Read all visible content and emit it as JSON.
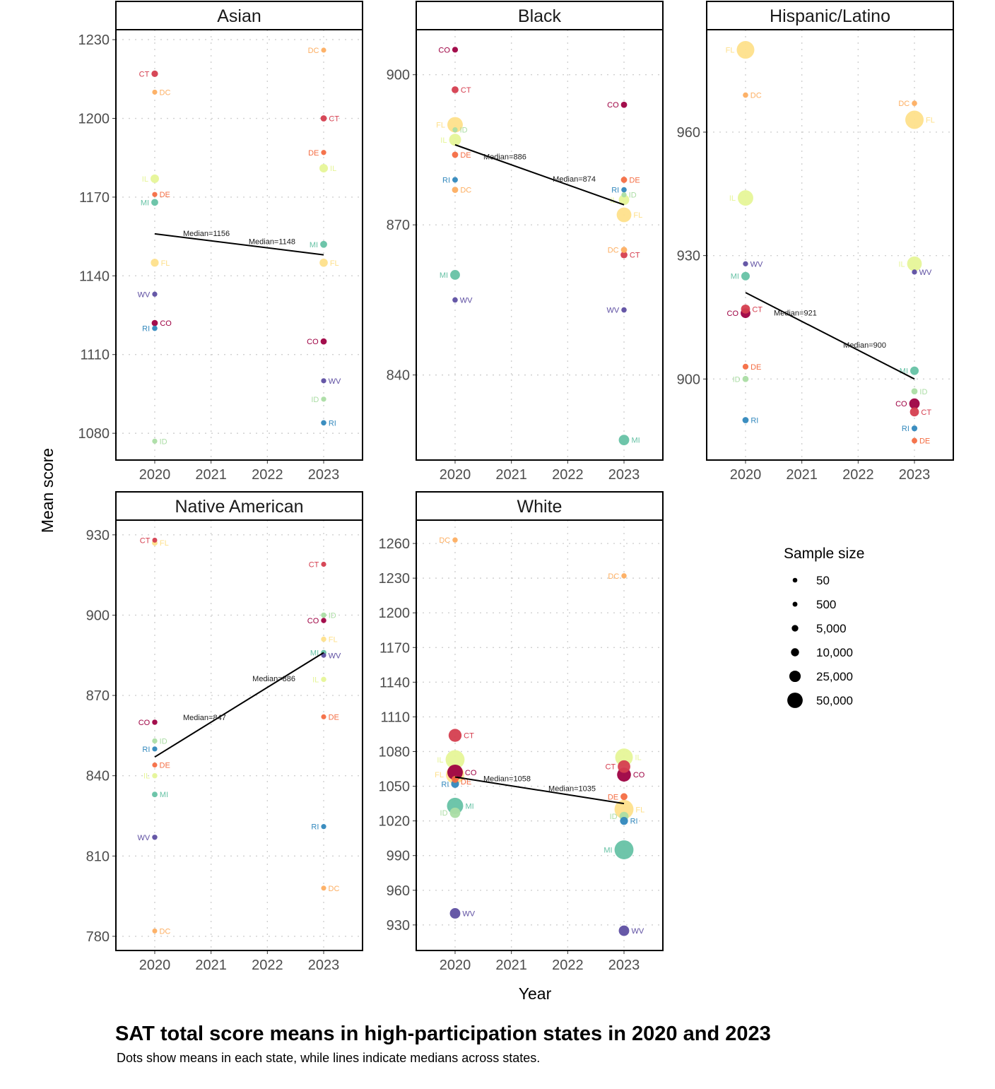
{
  "title": "SAT total score means in high-participation states in 2020 and 2023",
  "subtitle": "Dots show means in each state, while lines indicate medians across states.",
  "state_colors": {
    "CO": "#9E0142",
    "CT": "#D53E4F",
    "DE": "#F46D43",
    "DC": "#FDAE61",
    "FL": "#FEE08B",
    "IL": "#E6F598",
    "ID": "#ABDDA4",
    "MI": "#66C2A5",
    "RI": "#3288BD",
    "WV": "#5E4FA2"
  },
  "chart_data": {
    "type": "scatter",
    "xlabel": "Year",
    "ylabel": "Mean score",
    "x_ticks": [
      2020,
      2021,
      2022,
      2023
    ],
    "xlim": [
      2019.31,
      2023.69
    ],
    "grid": true,
    "legend": {
      "title": "Sample size",
      "placement": "right",
      "values": [
        50,
        500,
        5000,
        10000,
        25000,
        50000
      ],
      "labels": [
        "50",
        "500",
        "5,000",
        "10,000",
        "25,000",
        "50,000"
      ]
    },
    "panels": [
      {
        "name": "Asian",
        "ylim": [
          1069.8,
          1233.8
        ],
        "y_ticks": [
          1080,
          1110,
          1140,
          1170,
          1200,
          1230
        ],
        "medians": [
          {
            "year": 2020,
            "value": 1156,
            "label": "Median=1156"
          },
          {
            "year": 2023,
            "value": 1148,
            "label": "Median=1148"
          }
        ],
        "points": [
          {
            "state": "CT",
            "year": 2020,
            "score": 1217,
            "n": 4000
          },
          {
            "state": "DC",
            "year": 2020,
            "score": 1210,
            "n": 300
          },
          {
            "state": "IL",
            "year": 2020,
            "score": 1177,
            "n": 10000
          },
          {
            "state": "DE",
            "year": 2020,
            "score": 1171,
            "n": 500
          },
          {
            "state": "MI",
            "year": 2020,
            "score": 1168,
            "n": 5000
          },
          {
            "state": "FL",
            "year": 2020,
            "score": 1145,
            "n": 8000
          },
          {
            "state": "WV",
            "year": 2020,
            "score": 1133,
            "n": 500
          },
          {
            "state": "CO",
            "year": 2020,
            "score": 1122,
            "n": 3000
          },
          {
            "state": "RI",
            "year": 2020,
            "score": 1120,
            "n": 1000
          },
          {
            "state": "ID",
            "year": 2020,
            "score": 1077,
            "n": 500
          },
          {
            "state": "DC",
            "year": 2023,
            "score": 1226,
            "n": 300
          },
          {
            "state": "CT",
            "year": 2023,
            "score": 1200,
            "n": 3000
          },
          {
            "state": "DE",
            "year": 2023,
            "score": 1187,
            "n": 600
          },
          {
            "state": "IL",
            "year": 2023,
            "score": 1181,
            "n": 10000
          },
          {
            "state": "MI",
            "year": 2023,
            "score": 1152,
            "n": 5000
          },
          {
            "state": "FL",
            "year": 2023,
            "score": 1145,
            "n": 9000
          },
          {
            "state": "CO",
            "year": 2023,
            "score": 1115,
            "n": 3000
          },
          {
            "state": "WV",
            "year": 2023,
            "score": 1100,
            "n": 500
          },
          {
            "state": "ID",
            "year": 2023,
            "score": 1093,
            "n": 500
          },
          {
            "state": "RI",
            "year": 2023,
            "score": 1084,
            "n": 1000
          }
        ]
      },
      {
        "name": "Black",
        "ylim": [
          823.0,
          909.0
        ],
        "y_ticks": [
          840,
          870,
          900
        ],
        "medians": [
          {
            "year": 2020,
            "value": 886,
            "label": "Median=886"
          },
          {
            "year": 2023,
            "value": 874,
            "label": "Median=874"
          }
        ],
        "points": [
          {
            "state": "CO",
            "year": 2020,
            "score": 905,
            "n": 2000
          },
          {
            "state": "CT",
            "year": 2020,
            "score": 897,
            "n": 5000
          },
          {
            "state": "FL",
            "year": 2020,
            "score": 890,
            "n": 45000
          },
          {
            "state": "ID",
            "year": 2020,
            "score": 889,
            "n": 500
          },
          {
            "state": "IL",
            "year": 2020,
            "score": 887,
            "n": 25000
          },
          {
            "state": "DE",
            "year": 2020,
            "score": 884,
            "n": 3000
          },
          {
            "state": "RI",
            "year": 2020,
            "score": 879,
            "n": 1500
          },
          {
            "state": "DC",
            "year": 2020,
            "score": 877,
            "n": 3000
          },
          {
            "state": "MI",
            "year": 2020,
            "score": 860,
            "n": 15000
          },
          {
            "state": "WV",
            "year": 2020,
            "score": 855,
            "n": 1000
          },
          {
            "state": "CO",
            "year": 2023,
            "score": 894,
            "n": 3000
          },
          {
            "state": "DE",
            "year": 2023,
            "score": 879,
            "n": 3000
          },
          {
            "state": "RI",
            "year": 2023,
            "score": 877,
            "n": 1000
          },
          {
            "state": "ID",
            "year": 2023,
            "score": 876,
            "n": 500
          },
          {
            "state": "IL",
            "year": 2023,
            "score": 875,
            "n": 18000
          },
          {
            "state": "FL",
            "year": 2023,
            "score": 872,
            "n": 40000
          },
          {
            "state": "DC",
            "year": 2023,
            "score": 865,
            "n": 3000
          },
          {
            "state": "CT",
            "year": 2023,
            "score": 864,
            "n": 5000
          },
          {
            "state": "WV",
            "year": 2023,
            "score": 853,
            "n": 1000
          },
          {
            "state": "MI",
            "year": 2023,
            "score": 827,
            "n": 18000
          }
        ]
      },
      {
        "name": "Hispanic/Latino",
        "ylim": [
          880.3,
          984.9
        ],
        "y_ticks": [
          900,
          930,
          960
        ],
        "medians": [
          {
            "year": 2020,
            "value": 921,
            "label": "Median=921"
          },
          {
            "year": 2023,
            "value": 900,
            "label": "Median=900"
          }
        ],
        "points": [
          {
            "state": "FL",
            "year": 2020,
            "score": 980,
            "n": 60000
          },
          {
            "state": "DC",
            "year": 2020,
            "score": 969,
            "n": 1000
          },
          {
            "state": "IL",
            "year": 2020,
            "score": 944,
            "n": 45000
          },
          {
            "state": "WV",
            "year": 2020,
            "score": 928,
            "n": 600
          },
          {
            "state": "MI",
            "year": 2020,
            "score": 925,
            "n": 10000
          },
          {
            "state": "CO",
            "year": 2020,
            "score": 916,
            "n": 15000
          },
          {
            "state": "CT",
            "year": 2020,
            "score": 917,
            "n": 12000
          },
          {
            "state": "DE",
            "year": 2020,
            "score": 903,
            "n": 2000
          },
          {
            "state": "ID",
            "year": 2020,
            "score": 900,
            "n": 3000
          },
          {
            "state": "RI",
            "year": 2020,
            "score": 890,
            "n": 3000
          },
          {
            "state": "DC",
            "year": 2023,
            "score": 967,
            "n": 1000
          },
          {
            "state": "FL",
            "year": 2023,
            "score": 963,
            "n": 65000
          },
          {
            "state": "IL",
            "year": 2023,
            "score": 928,
            "n": 40000
          },
          {
            "state": "WV",
            "year": 2023,
            "score": 926,
            "n": 600
          },
          {
            "state": "MI",
            "year": 2023,
            "score": 902,
            "n": 10000
          },
          {
            "state": "ID",
            "year": 2023,
            "score": 897,
            "n": 3000
          },
          {
            "state": "CO",
            "year": 2023,
            "score": 894,
            "n": 18000
          },
          {
            "state": "CT",
            "year": 2023,
            "score": 892,
            "n": 12000
          },
          {
            "state": "RI",
            "year": 2023,
            "score": 888,
            "n": 2000
          },
          {
            "state": "DE",
            "year": 2023,
            "score": 885,
            "n": 1500
          }
        ]
      },
      {
        "name": "Native American",
        "ylim": [
          774.7,
          935.5
        ],
        "y_ticks": [
          780,
          810,
          840,
          870,
          900,
          930
        ],
        "medians": [
          {
            "year": 2020,
            "value": 847,
            "label": "Median=847"
          },
          {
            "year": 2023,
            "value": 886,
            "label": "Median=886"
          }
        ],
        "points": [
          {
            "state": "CT",
            "year": 2020,
            "score": 928,
            "n": 150
          },
          {
            "state": "FL",
            "year": 2020,
            "score": 927,
            "n": 1500
          },
          {
            "state": "CO",
            "year": 2020,
            "score": 860,
            "n": 800
          },
          {
            "state": "ID",
            "year": 2020,
            "score": 853,
            "n": 600
          },
          {
            "state": "RI",
            "year": 2020,
            "score": 850,
            "n": 400
          },
          {
            "state": "DE",
            "year": 2020,
            "score": 844,
            "n": 300
          },
          {
            "state": "IL",
            "year": 2020,
            "score": 840,
            "n": 800
          },
          {
            "state": "MI",
            "year": 2020,
            "score": 833,
            "n": 1500
          },
          {
            "state": "WV",
            "year": 2020,
            "score": 817,
            "n": 800
          },
          {
            "state": "DC",
            "year": 2020,
            "score": 782,
            "n": 100
          },
          {
            "state": "CT",
            "year": 2023,
            "score": 919,
            "n": 400
          },
          {
            "state": "ID",
            "year": 2023,
            "score": 900,
            "n": 800
          },
          {
            "state": "CO",
            "year": 2023,
            "score": 898,
            "n": 800
          },
          {
            "state": "FL",
            "year": 2023,
            "score": 891,
            "n": 800
          },
          {
            "state": "MI",
            "year": 2023,
            "score": 886,
            "n": 1200
          },
          {
            "state": "WV",
            "year": 2023,
            "score": 885,
            "n": 300
          },
          {
            "state": "IL",
            "year": 2023,
            "score": 876,
            "n": 800
          },
          {
            "state": "DE",
            "year": 2023,
            "score": 862,
            "n": 300
          },
          {
            "state": "RI",
            "year": 2023,
            "score": 821,
            "n": 400
          },
          {
            "state": "DC",
            "year": 2023,
            "score": 798,
            "n": 200
          }
        ]
      },
      {
        "name": "White",
        "ylim": [
          907.9,
          1280.2
        ],
        "y_ticks": [
          930,
          960,
          990,
          1020,
          1050,
          1080,
          1110,
          1140,
          1170,
          1200,
          1230,
          1260
        ],
        "medians": [
          {
            "year": 2020,
            "value": 1058,
            "label": "Median=1058"
          },
          {
            "year": 2023,
            "value": 1035,
            "label": "Median=1035"
          }
        ],
        "points": [
          {
            "state": "DC",
            "year": 2020,
            "score": 1263,
            "n": 800
          },
          {
            "state": "CT",
            "year": 2020,
            "score": 1094,
            "n": 30000
          },
          {
            "state": "CO",
            "year": 2020,
            "score": 1062,
            "n": 45000
          },
          {
            "state": "IL",
            "year": 2020,
            "score": 1073,
            "n": 70000
          },
          {
            "state": "FL",
            "year": 2020,
            "score": 1060,
            "n": 65000
          },
          {
            "state": "DE",
            "year": 2020,
            "score": 1056,
            "n": 5000
          },
          {
            "state": "RI",
            "year": 2020,
            "score": 1052,
            "n": 8000
          },
          {
            "state": "ID",
            "year": 2020,
            "score": 1027,
            "n": 18000
          },
          {
            "state": "MI",
            "year": 2020,
            "score": 1033,
            "n": 50000
          },
          {
            "state": "WV",
            "year": 2020,
            "score": 940,
            "n": 18000
          },
          {
            "state": "DC",
            "year": 2023,
            "score": 1232,
            "n": 800
          },
          {
            "state": "IL",
            "year": 2023,
            "score": 1075,
            "n": 60000
          },
          {
            "state": "CT",
            "year": 2023,
            "score": 1067,
            "n": 28000
          },
          {
            "state": "CO",
            "year": 2023,
            "score": 1060,
            "n": 35000
          },
          {
            "state": "DE",
            "year": 2023,
            "score": 1041,
            "n": 5000
          },
          {
            "state": "FL",
            "year": 2023,
            "score": 1030,
            "n": 70000
          },
          {
            "state": "ID",
            "year": 2023,
            "score": 1024,
            "n": 12000
          },
          {
            "state": "RI",
            "year": 2023,
            "score": 1020,
            "n": 8000
          },
          {
            "state": "MI",
            "year": 2023,
            "score": 995,
            "n": 70000
          },
          {
            "state": "WV",
            "year": 2023,
            "score": 925,
            "n": 18000
          }
        ]
      }
    ]
  }
}
